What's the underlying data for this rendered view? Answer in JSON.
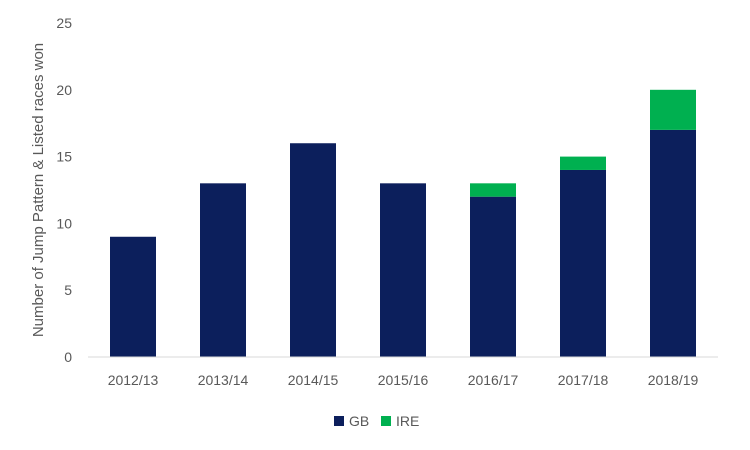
{
  "chart_data": {
    "type": "bar",
    "stacked": true,
    "title": "",
    "xlabel": "",
    "ylabel": "Number of Jump Pattern & Listed races won",
    "ylim": [
      0,
      25
    ],
    "yticks": [
      0,
      5,
      10,
      15,
      20,
      25
    ],
    "grid": false,
    "legend_position": "bottom",
    "categories": [
      "2012/13",
      "2013/14",
      "2014/15",
      "2015/16",
      "2016/17",
      "2017/18",
      "2018/19"
    ],
    "series": [
      {
        "name": "GB",
        "color": "#0c1f5c",
        "values": [
          9,
          13,
          16,
          13,
          12,
          14,
          17
        ]
      },
      {
        "name": "IRE",
        "color": "#00b050",
        "values": [
          0,
          0,
          0,
          0,
          1,
          1,
          3
        ]
      }
    ]
  }
}
